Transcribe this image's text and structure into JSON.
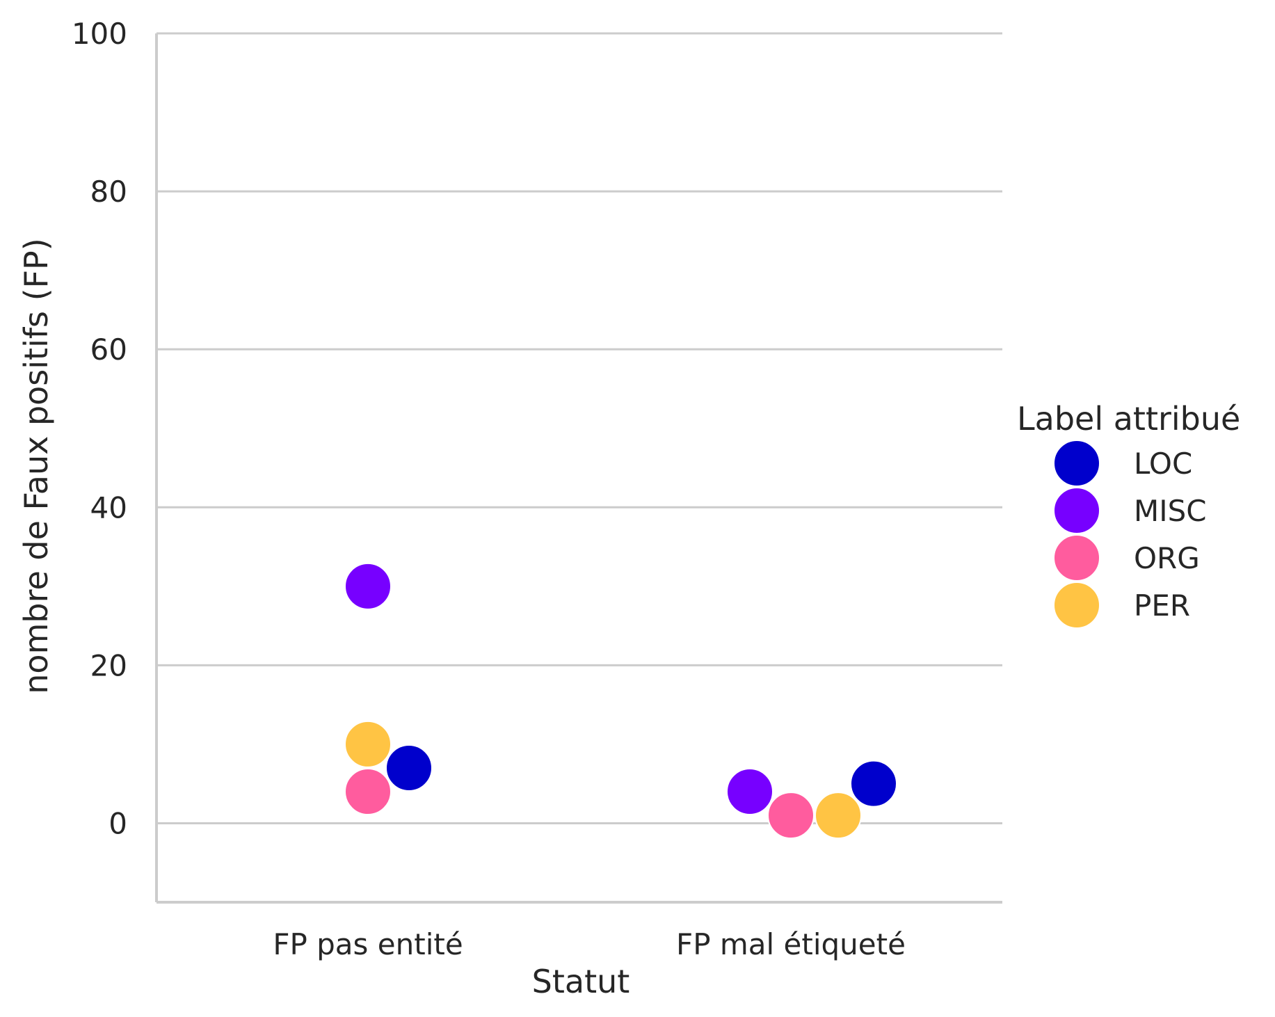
{
  "chart_data": {
    "type": "scatter",
    "subtype": "swarm",
    "xlabel": "Statut",
    "ylabel": "nombre de Faux positifs (FP)",
    "categories": [
      "FP pas entité",
      "FP mal étiqueté"
    ],
    "ylim": [
      -10,
      100
    ],
    "yticks": [
      0,
      20,
      40,
      60,
      80,
      100
    ],
    "grid": "horizontal",
    "legend": {
      "title": "Label attribué",
      "placement": "right"
    },
    "series": [
      {
        "name": "LOC",
        "color": "#0000CC",
        "values": [
          7,
          5
        ]
      },
      {
        "name": "MISC",
        "color": "#7700FF",
        "values": [
          30,
          4
        ]
      },
      {
        "name": "ORG",
        "color": "#FF5C9E",
        "values": [
          4,
          1
        ]
      },
      {
        "name": "PER",
        "color": "#FFC444",
        "values": [
          10,
          1
        ]
      }
    ]
  }
}
